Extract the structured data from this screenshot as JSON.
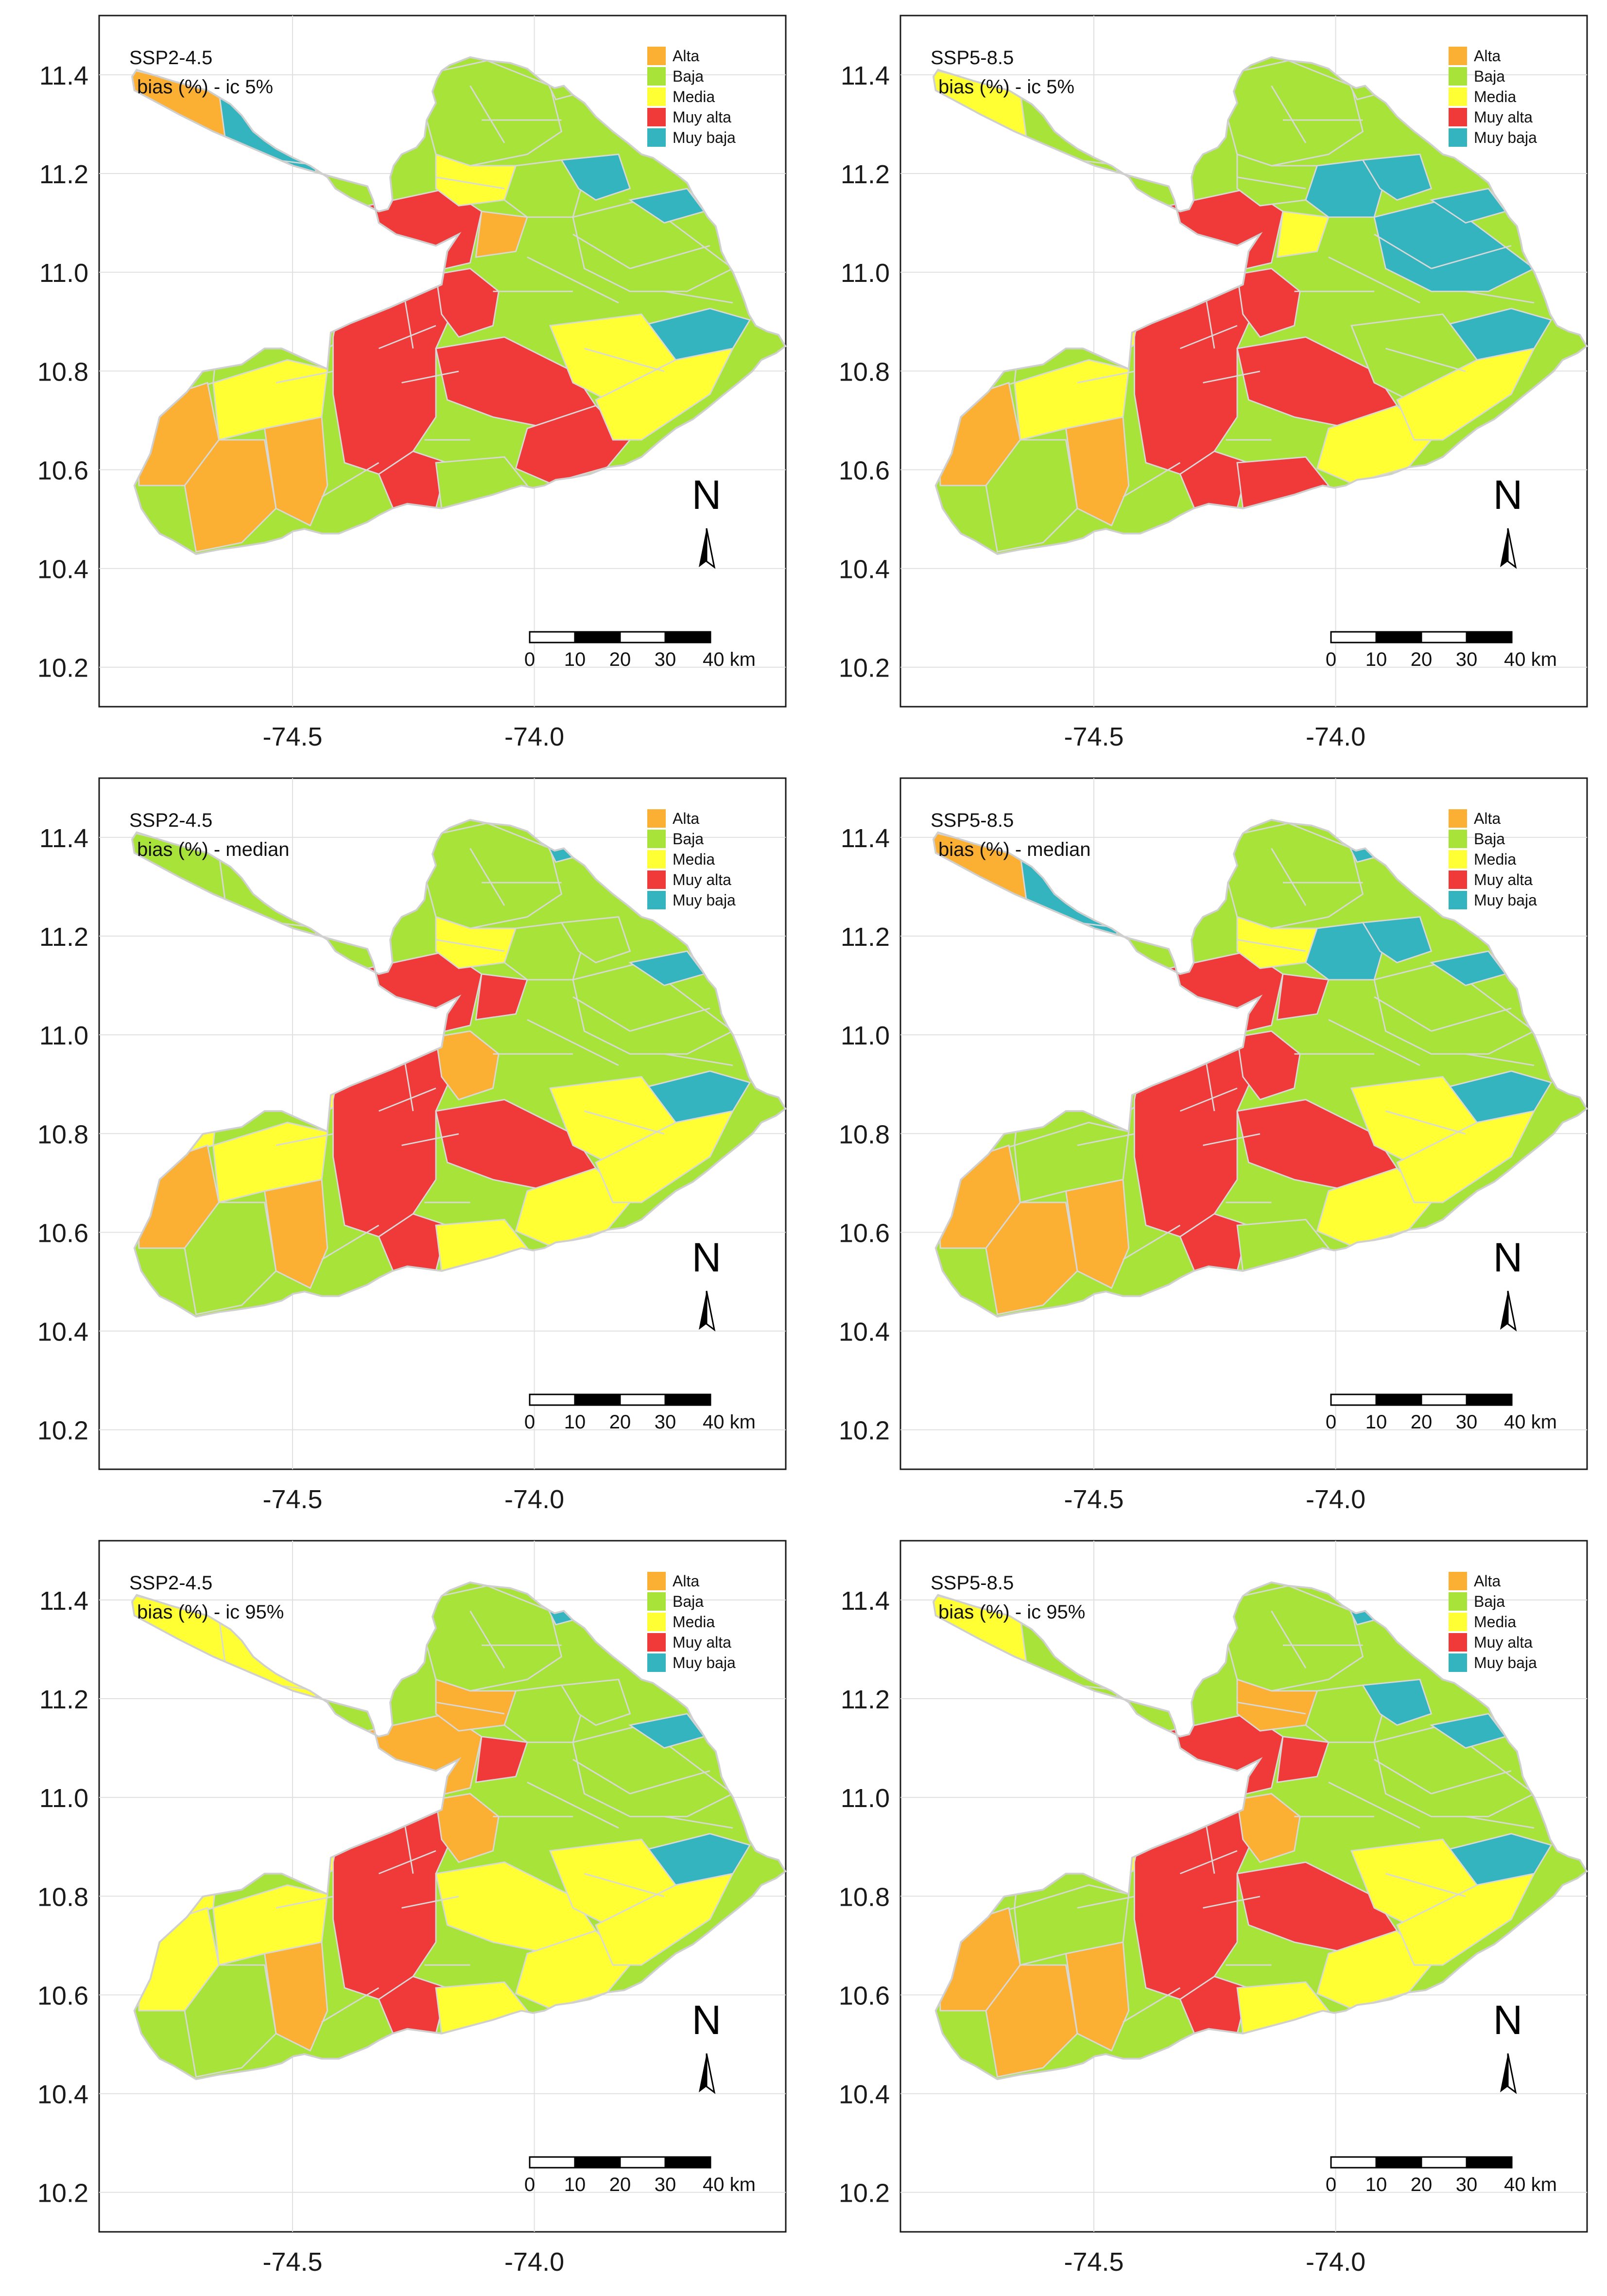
{
  "figure": {
    "panels": [
      {
        "scenario": "SSP2-4.5",
        "statistic": "bias (%) - ic 5%"
      },
      {
        "scenario": "SSP5-8.5",
        "statistic": "bias (%) - ic 5%"
      },
      {
        "scenario": "SSP2-4.5",
        "statistic": "bias (%) - median"
      },
      {
        "scenario": "SSP5-8.5",
        "statistic": "bias (%) - median"
      },
      {
        "scenario": "SSP2-4.5",
        "statistic": "bias (%) - ic 95%"
      },
      {
        "scenario": "SSP5-8.5",
        "statistic": "bias (%) - ic 95%"
      }
    ],
    "legend": [
      {
        "label": "Alta",
        "color": "#fbb034"
      },
      {
        "label": "Baja",
        "color": "#a8e33a"
      },
      {
        "label": "Media",
        "color": "#ffff33"
      },
      {
        "label": "Muy alta",
        "color": "#f03a3a"
      },
      {
        "label": "Muy baja",
        "color": "#33b4bf"
      }
    ],
    "y_ticks": [
      "11.4",
      "11.2",
      "11.0",
      "10.8",
      "10.6",
      "10.4",
      "10.2"
    ],
    "x_ticks": [
      "-74.5",
      "-74.0"
    ],
    "north_label": "N",
    "scale_bar": {
      "ticks": [
        "0",
        "10",
        "20",
        "30",
        "40 km"
      ]
    }
  },
  "chart_data": {
    "type": "map",
    "y_range": [
      10.12,
      11.52
    ],
    "x_range": [
      -74.9,
      -73.48
    ],
    "y_ticks": [
      11.4,
      11.2,
      11.0,
      10.8,
      10.6,
      10.4,
      10.2
    ],
    "x_ticks": [
      -74.5,
      -74.0
    ],
    "grid": true,
    "legend_position": "top-right",
    "scale_bar_km": [
      0,
      10,
      20,
      30,
      40
    ]
  }
}
